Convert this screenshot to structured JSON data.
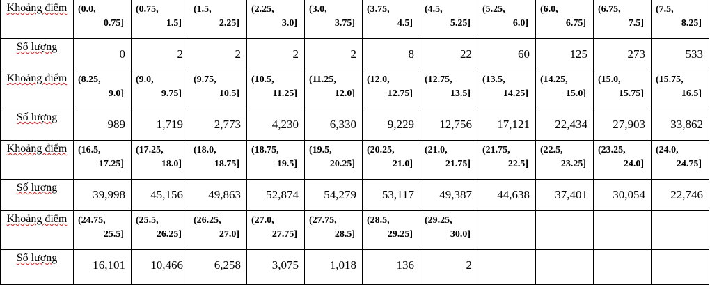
{
  "labels": {
    "range": "Khoảng điểm",
    "count": "Số lượng"
  },
  "blocks": [
    {
      "ranges": [
        [
          "(0.0,",
          "0.75]"
        ],
        [
          "(0.75,",
          "1.5]"
        ],
        [
          "(1.5,",
          "2.25]"
        ],
        [
          "(2.25,",
          "3.0]"
        ],
        [
          "(3.0,",
          "3.75]"
        ],
        [
          "(3.75,",
          "4.5]"
        ],
        [
          "(4.5,",
          "5.25]"
        ],
        [
          "(5.25,",
          "6.0]"
        ],
        [
          "(6.0,",
          "6.75]"
        ],
        [
          "(6.75,",
          "7.5]"
        ],
        [
          "(7.5,",
          "8.25]"
        ]
      ],
      "counts": [
        "0",
        "2",
        "2",
        "2",
        "2",
        "8",
        "22",
        "60",
        "125",
        "273",
        "533"
      ]
    },
    {
      "ranges": [
        [
          "(8.25,",
          "9.0]"
        ],
        [
          "(9.0,",
          "9.75]"
        ],
        [
          "(9.75,",
          "10.5]"
        ],
        [
          "(10.5,",
          "11.25]"
        ],
        [
          "(11.25,",
          "12.0]"
        ],
        [
          "(12.0,",
          "12.75]"
        ],
        [
          "(12.75,",
          "13.5]"
        ],
        [
          "(13.5,",
          "14.25]"
        ],
        [
          "(14.25,",
          "15.0]"
        ],
        [
          "(15.0,",
          "15.75]"
        ],
        [
          "(15.75,",
          "16.5]"
        ]
      ],
      "counts": [
        "989",
        "1,719",
        "2,773",
        "4,230",
        "6,330",
        "9,229",
        "12,756",
        "17,121",
        "22,434",
        "27,903",
        "33,862"
      ]
    },
    {
      "ranges": [
        [
          "(16.5,",
          "17.25]"
        ],
        [
          "(17.25,",
          "18.0]"
        ],
        [
          "(18.0,",
          "18.75]"
        ],
        [
          "(18.75,",
          "19.5]"
        ],
        [
          "(19.5,",
          "20.25]"
        ],
        [
          "(20.25,",
          "21.0]"
        ],
        [
          "(21.0,",
          "21.75]"
        ],
        [
          "(21.75,",
          "22.5]"
        ],
        [
          "(22.5,",
          "23.25]"
        ],
        [
          "(23.25,",
          "24.0]"
        ],
        [
          "(24.0,",
          "24.75]"
        ]
      ],
      "counts": [
        "39,998",
        "45,156",
        "49,863",
        "52,874",
        "54,279",
        "53,117",
        "49,387",
        "44,638",
        "37,401",
        "30,054",
        "22,746"
      ]
    },
    {
      "ranges": [
        [
          "(24.75,",
          "25.5]"
        ],
        [
          "(25.5,",
          "26.25]"
        ],
        [
          "(26.25,",
          "27.0]"
        ],
        [
          "(27.0,",
          "27.75]"
        ],
        [
          "(27.75,",
          "28.5]"
        ],
        [
          "(28.5,",
          "29.25]"
        ],
        [
          "(29.25,",
          "30.0]"
        ]
      ],
      "counts": [
        "16,101",
        "10,466",
        "6,258",
        "3,075",
        "1,018",
        "136",
        "2"
      ]
    }
  ]
}
